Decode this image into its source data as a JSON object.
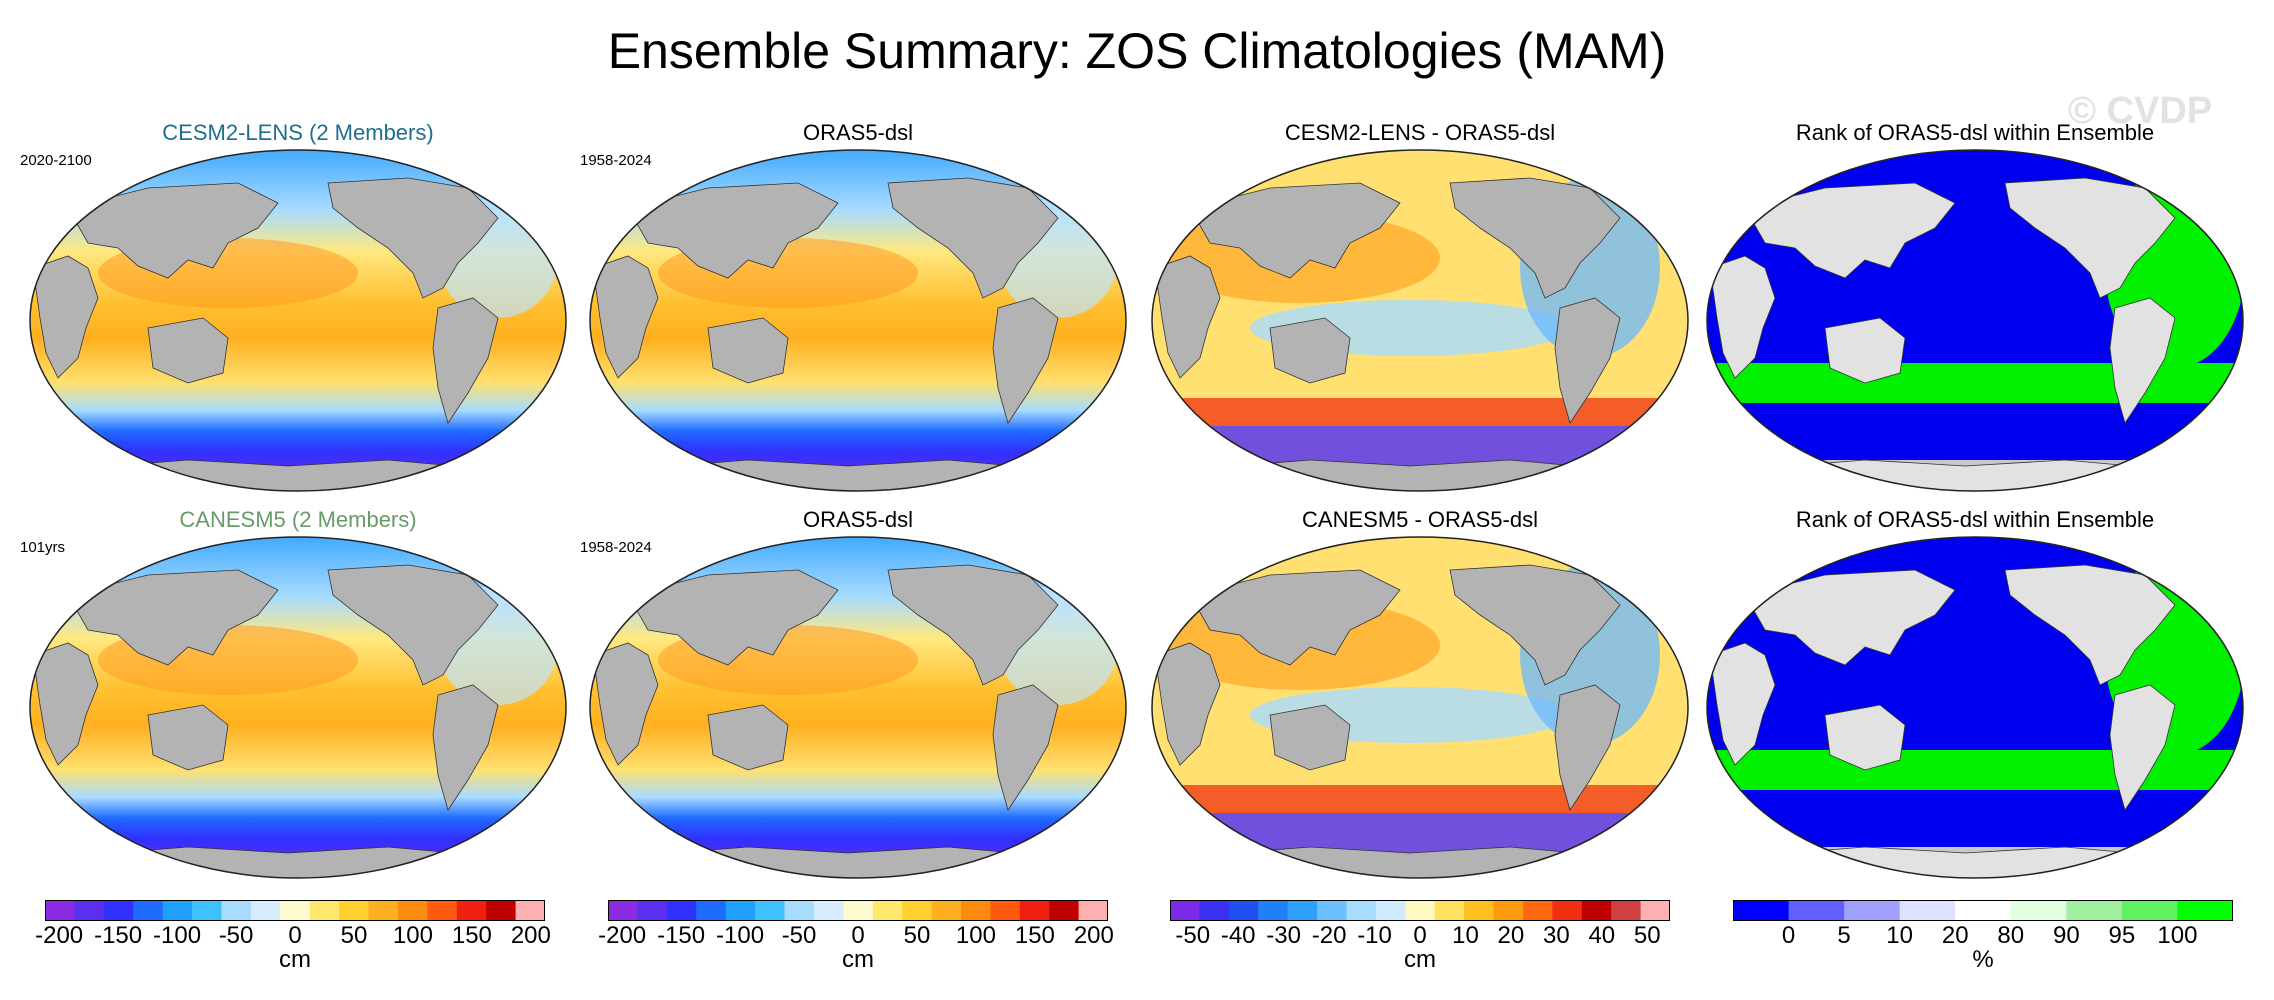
{
  "title": "Ensemble Summary: ZOS Climatologies (MAM)",
  "watermark": "© CVDP",
  "rows": [
    {
      "model_title": "CESM2-LENS (2 Members)",
      "model_title_color": "#1f6f8b",
      "model_period": "2020-2100",
      "obs_title": "ORAS5-dsl",
      "obs_period": "1958-2024",
      "diff_title": "CESM2-LENS - ORAS5-dsl",
      "rank_title": "Rank of ORAS5-dsl within Ensemble"
    },
    {
      "model_title": "CANESM5 (2 Members)",
      "model_title_color": "#6a9a6a",
      "model_period": "101yrs",
      "obs_title": "ORAS5-dsl",
      "obs_period": "1958-2024",
      "diff_title": "CANESM5 - ORAS5-dsl",
      "rank_title": "Rank of ORAS5-dsl within Ensemble"
    }
  ],
  "chart_data": [
    {
      "type": "heatmap",
      "title": "CESM2-LENS (2 Members)",
      "subtitle": "2020-2100",
      "variable": "ZOS",
      "season": "MAM",
      "units": "cm",
      "colorbar_ticks": [
        -200,
        -150,
        -100,
        -50,
        0,
        50,
        100,
        150,
        200
      ],
      "range": [
        -200,
        200
      ]
    },
    {
      "type": "heatmap",
      "title": "ORAS5-dsl",
      "subtitle": "1958-2024",
      "units": "cm",
      "colorbar_ticks": [
        -200,
        -150,
        -100,
        -50,
        0,
        50,
        100,
        150,
        200
      ],
      "range": [
        -200,
        200
      ]
    },
    {
      "type": "heatmap",
      "title": "CESM2-LENS - ORAS5-dsl",
      "units": "cm",
      "colorbar_ticks": [
        -50,
        -40,
        -30,
        -20,
        -10,
        0,
        10,
        20,
        30,
        40,
        50
      ],
      "range": [
        -55,
        55
      ]
    },
    {
      "type": "heatmap",
      "title": "Rank of ORAS5-dsl within Ensemble",
      "units": "%",
      "colorbar_ticks": [
        0,
        5,
        10,
        20,
        80,
        90,
        95,
        100
      ]
    },
    {
      "type": "heatmap",
      "title": "CANESM5 (2 Members)",
      "subtitle": "101yrs",
      "units": "cm",
      "colorbar_ticks": [
        -200,
        -150,
        -100,
        -50,
        0,
        50,
        100,
        150,
        200
      ],
      "range": [
        -200,
        200
      ]
    },
    {
      "type": "heatmap",
      "title": "ORAS5-dsl",
      "subtitle": "1958-2024",
      "units": "cm",
      "colorbar_ticks": [
        -200,
        -150,
        -100,
        -50,
        0,
        50,
        100,
        150,
        200
      ],
      "range": [
        -200,
        200
      ]
    },
    {
      "type": "heatmap",
      "title": "CANESM5 - ORAS5-dsl",
      "units": "cm",
      "colorbar_ticks": [
        -50,
        -40,
        -30,
        -20,
        -10,
        0,
        10,
        20,
        30,
        40,
        50
      ],
      "range": [
        -55,
        55
      ]
    },
    {
      "type": "heatmap",
      "title": "Rank of ORAS5-dsl within Ensemble",
      "units": "%",
      "colorbar_ticks": [
        0,
        5,
        10,
        20,
        80,
        90,
        95,
        100
      ]
    }
  ],
  "colorbars": [
    {
      "unit": "cm",
      "ticks": [
        "-200",
        "-150",
        "-100",
        "-50",
        "0",
        "50",
        "100",
        "150",
        "200"
      ],
      "tick_values": [
        -200,
        -150,
        -100,
        -50,
        0,
        50,
        100,
        150,
        200
      ],
      "min": -212,
      "max": 212,
      "colors": [
        "#8a2be2",
        "#5a2ff0",
        "#3030ff",
        "#1e6bff",
        "#1ea0ff",
        "#40c0ff",
        "#a8dcff",
        "#d8ecff",
        "#fffbd0",
        "#ffe870",
        "#ffd030",
        "#ffb020",
        "#ff8a10",
        "#ff5a10",
        "#f02010",
        "#c00000",
        "#ffb0b0"
      ]
    },
    {
      "unit": "cm",
      "ticks": [
        "-200",
        "-150",
        "-100",
        "-50",
        "0",
        "50",
        "100",
        "150",
        "200"
      ],
      "tick_values": [
        -200,
        -150,
        -100,
        -50,
        0,
        50,
        100,
        150,
        200
      ],
      "min": -212,
      "max": 212,
      "colors": [
        "#8a2be2",
        "#5a2ff0",
        "#3030ff",
        "#1e6bff",
        "#1ea0ff",
        "#40c0ff",
        "#a8dcff",
        "#d8ecff",
        "#fffbd0",
        "#ffe870",
        "#ffd030",
        "#ffb020",
        "#ff8a10",
        "#ff5a10",
        "#f02010",
        "#c00000",
        "#ffb0b0"
      ]
    },
    {
      "unit": "cm",
      "ticks": [
        "-50",
        "-40",
        "-30",
        "-20",
        "-10",
        "0",
        "10",
        "20",
        "30",
        "40",
        "50"
      ],
      "tick_values": [
        -50,
        -40,
        -30,
        -20,
        -10,
        0,
        10,
        20,
        30,
        40,
        50
      ],
      "min": -55,
      "max": 55,
      "colors": [
        "#7b2be8",
        "#3b2ff0",
        "#2050f0",
        "#2080f8",
        "#30a0ff",
        "#6cc0ff",
        "#a8dcff",
        "#d0ecff",
        "#fff8c0",
        "#ffe060",
        "#ffc020",
        "#ff9a10",
        "#ff6a10",
        "#f03010",
        "#c00000",
        "#d04040",
        "#ffb0b0"
      ]
    },
    {
      "unit": "%",
      "ticks": [
        "0",
        "5",
        "10",
        "20",
        "80",
        "90",
        "95",
        "100"
      ],
      "tick_values": [
        0,
        5,
        10,
        20,
        80,
        90,
        95,
        100
      ],
      "colors": [
        "#0000ff",
        "#6060ff",
        "#a0a0ff",
        "#e0e0ff",
        "#ffffff",
        "#e0ffe0",
        "#a0f0a0",
        "#60f060",
        "#00ff00"
      ]
    }
  ]
}
